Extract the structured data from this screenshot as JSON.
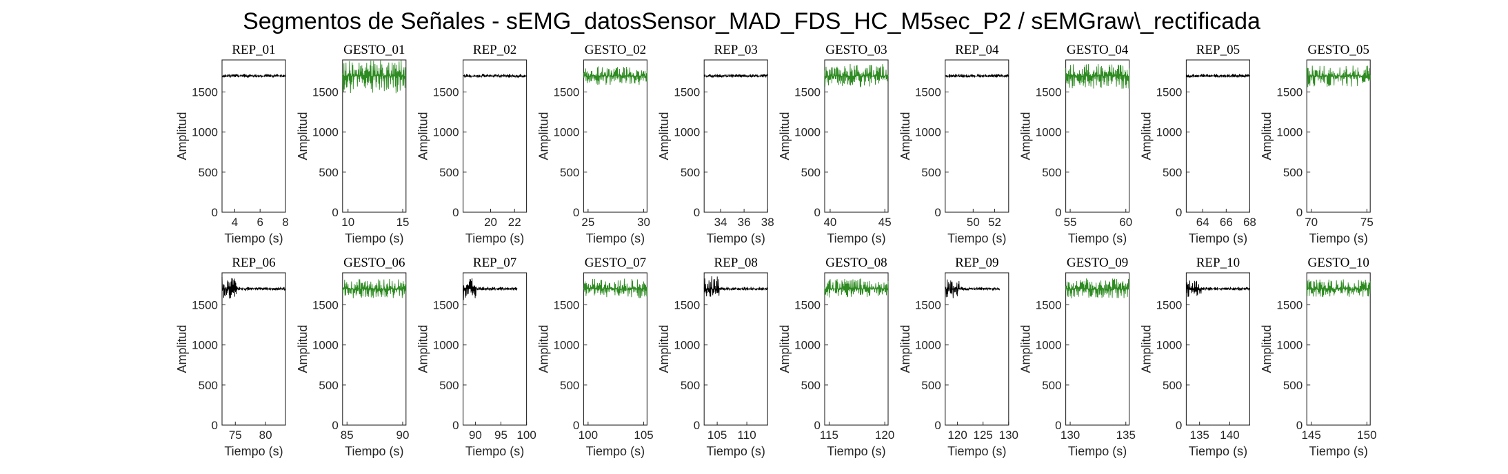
{
  "title": "Segmentos de Señales - sEMG_datosSensor_MAD_FDS_HC_M5sec_P2 / sEMGraw\\_rectificada",
  "colors": {
    "rep": "#000000",
    "gesto": "#2e8b22",
    "axis": "#262626"
  },
  "chart_data": [
    {
      "type": "line",
      "title": "REP_01",
      "kind": "rep",
      "xlabel": "Tiempo (s)",
      "ylabel": "Amplitud",
      "xlim": [
        3,
        8
      ],
      "ylim": [
        0,
        1900
      ],
      "xticks": [
        4,
        6,
        8
      ],
      "yticks": [
        0,
        500,
        1000,
        1500
      ],
      "signal_range": [
        3,
        8
      ],
      "baseline": 1700,
      "noise": [
        1680,
        1725
      ]
    },
    {
      "type": "line",
      "title": "GESTO_01",
      "kind": "gesto",
      "xlabel": "Tiempo (s)",
      "ylabel": "Amplitud",
      "xlim": [
        9.5,
        15.3
      ],
      "ylim": [
        0,
        1900
      ],
      "xticks": [
        10,
        15
      ],
      "yticks": [
        0,
        500,
        1000,
        1500
      ],
      "signal_range": [
        9.5,
        15.3
      ],
      "baseline": 1700,
      "noise": [
        1480,
        1900
      ]
    },
    {
      "type": "line",
      "title": "REP_02",
      "kind": "rep",
      "xlabel": "Tiempo (s)",
      "ylabel": "Amplitud",
      "xlim": [
        17.7,
        23
      ],
      "ylim": [
        0,
        1900
      ],
      "xticks": [
        20,
        22
      ],
      "yticks": [
        0,
        500,
        1000,
        1500
      ],
      "signal_range": [
        17.7,
        23
      ],
      "baseline": 1700,
      "noise": [
        1680,
        1725
      ]
    },
    {
      "type": "line",
      "title": "GESTO_02",
      "kind": "gesto",
      "xlabel": "Tiempo (s)",
      "ylabel": "Amplitud",
      "xlim": [
        24.6,
        30.3
      ],
      "ylim": [
        0,
        1900
      ],
      "xticks": [
        25,
        30
      ],
      "yticks": [
        0,
        500,
        1000,
        1500
      ],
      "signal_range": [
        24.6,
        30.3
      ],
      "baseline": 1700,
      "noise": [
        1580,
        1820
      ]
    },
    {
      "type": "line",
      "title": "REP_03",
      "kind": "rep",
      "xlabel": "Tiempo (s)",
      "ylabel": "Amplitud",
      "xlim": [
        32.6,
        38
      ],
      "ylim": [
        0,
        1900
      ],
      "xticks": [
        34,
        36,
        38
      ],
      "yticks": [
        0,
        500,
        1000,
        1500
      ],
      "signal_range": [
        32.6,
        38
      ],
      "baseline": 1700,
      "noise": [
        1680,
        1725
      ]
    },
    {
      "type": "line",
      "title": "GESTO_03",
      "kind": "gesto",
      "xlabel": "Tiempo (s)",
      "ylabel": "Amplitud",
      "xlim": [
        39.5,
        45.3
      ],
      "ylim": [
        0,
        1900
      ],
      "xticks": [
        40,
        45
      ],
      "yticks": [
        0,
        500,
        1000,
        1500
      ],
      "signal_range": [
        39.5,
        45.3
      ],
      "baseline": 1700,
      "noise": [
        1560,
        1850
      ]
    },
    {
      "type": "line",
      "title": "REP_04",
      "kind": "rep",
      "xlabel": "Tiempo (s)",
      "ylabel": "Amplitud",
      "xlim": [
        47.4,
        53.3
      ],
      "ylim": [
        0,
        1900
      ],
      "xticks": [
        50,
        52
      ],
      "yticks": [
        0,
        500,
        1000,
        1500
      ],
      "signal_range": [
        47.4,
        53.3
      ],
      "baseline": 1700,
      "noise": [
        1680,
        1725
      ]
    },
    {
      "type": "line",
      "title": "GESTO_04",
      "kind": "gesto",
      "xlabel": "Tiempo (s)",
      "ylabel": "Amplitud",
      "xlim": [
        54.6,
        60.3
      ],
      "ylim": [
        0,
        1900
      ],
      "xticks": [
        55,
        60
      ],
      "yticks": [
        0,
        500,
        1000,
        1500
      ],
      "signal_range": [
        54.6,
        60.3
      ],
      "baseline": 1700,
      "noise": [
        1540,
        1850
      ]
    },
    {
      "type": "line",
      "title": "REP_05",
      "kind": "rep",
      "xlabel": "Tiempo (s)",
      "ylabel": "Amplitud",
      "xlim": [
        62.6,
        68
      ],
      "ylim": [
        0,
        1900
      ],
      "xticks": [
        64,
        66,
        68
      ],
      "yticks": [
        0,
        500,
        1000,
        1500
      ],
      "signal_range": [
        62.6,
        68
      ],
      "baseline": 1700,
      "noise": [
        1680,
        1725
      ]
    },
    {
      "type": "line",
      "title": "GESTO_05",
      "kind": "gesto",
      "xlabel": "Tiempo (s)",
      "ylabel": "Amplitud",
      "xlim": [
        69.6,
        75.3
      ],
      "ylim": [
        0,
        1900
      ],
      "xticks": [
        70,
        75
      ],
      "yticks": [
        0,
        500,
        1000,
        1500
      ],
      "signal_range": [
        69.6,
        75.3
      ],
      "baseline": 1700,
      "noise": [
        1560,
        1830
      ]
    },
    {
      "type": "line",
      "title": "REP_06",
      "kind": "rep",
      "xlabel": "Tiempo (s)",
      "ylabel": "Amplitud",
      "xlim": [
        72.8,
        83.3
      ],
      "ylim": [
        0,
        1900
      ],
      "xticks": [
        75,
        80
      ],
      "yticks": [
        0,
        500,
        1000,
        1500
      ],
      "signal_range": [
        72.8,
        83.3
      ],
      "baseline": 1700,
      "noise": [
        1680,
        1725
      ],
      "burst": [
        72.8,
        75.2,
        1580,
        1850
      ]
    },
    {
      "type": "line",
      "title": "GESTO_06",
      "kind": "gesto",
      "xlabel": "Tiempo (s)",
      "ylabel": "Amplitud",
      "xlim": [
        84.6,
        90.3
      ],
      "ylim": [
        0,
        1900
      ],
      "xticks": [
        85,
        90
      ],
      "yticks": [
        0,
        500,
        1000,
        1500
      ],
      "signal_range": [
        84.6,
        90.3
      ],
      "baseline": 1700,
      "noise": [
        1580,
        1830
      ]
    },
    {
      "type": "line",
      "title": "REP_07",
      "kind": "rep",
      "xlabel": "Tiempo (s)",
      "ylabel": "Amplitud",
      "xlim": [
        87.6,
        100
      ],
      "ylim": [
        0,
        1900
      ],
      "xticks": [
        90,
        95,
        100
      ],
      "yticks": [
        0,
        500,
        1000,
        1500
      ],
      "signal_range": [
        87.6,
        98.2
      ],
      "baseline": 1700,
      "noise": [
        1680,
        1725
      ],
      "burst": [
        87.6,
        90.2,
        1550,
        1860
      ]
    },
    {
      "type": "line",
      "title": "GESTO_07",
      "kind": "gesto",
      "xlabel": "Tiempo (s)",
      "ylabel": "Amplitud",
      "xlim": [
        99.6,
        105.3
      ],
      "ylim": [
        0,
        1900
      ],
      "xticks": [
        100,
        105
      ],
      "yticks": [
        0,
        500,
        1000,
        1500
      ],
      "signal_range": [
        99.6,
        105.3
      ],
      "baseline": 1700,
      "noise": [
        1580,
        1830
      ]
    },
    {
      "type": "line",
      "title": "REP_08",
      "kind": "rep",
      "xlabel": "Tiempo (s)",
      "ylabel": "Amplitud",
      "xlim": [
        102.8,
        113.5
      ],
      "ylim": [
        0,
        1900
      ],
      "xticks": [
        105,
        110
      ],
      "yticks": [
        0,
        500,
        1000,
        1500
      ],
      "signal_range": [
        102.8,
        113.5
      ],
      "baseline": 1700,
      "noise": [
        1680,
        1725
      ],
      "burst": [
        102.8,
        105.4,
        1580,
        1860
      ]
    },
    {
      "type": "line",
      "title": "GESTO_08",
      "kind": "gesto",
      "xlabel": "Tiempo (s)",
      "ylabel": "Amplitud",
      "xlim": [
        114.6,
        120.3
      ],
      "ylim": [
        0,
        1900
      ],
      "xticks": [
        115,
        120
      ],
      "yticks": [
        0,
        500,
        1000,
        1500
      ],
      "signal_range": [
        114.6,
        120.3
      ],
      "baseline": 1700,
      "noise": [
        1590,
        1830
      ]
    },
    {
      "type": "line",
      "title": "REP_09",
      "kind": "rep",
      "xlabel": "Tiempo (s)",
      "ylabel": "Amplitud",
      "xlim": [
        117.6,
        130
      ],
      "ylim": [
        0,
        1900
      ],
      "xticks": [
        120,
        125,
        130
      ],
      "yticks": [
        0,
        500,
        1000,
        1500
      ],
      "signal_range": [
        117.6,
        128.3
      ],
      "baseline": 1700,
      "noise": [
        1680,
        1725
      ],
      "burst": [
        117.6,
        120.3,
        1580,
        1860
      ]
    },
    {
      "type": "line",
      "title": "GESTO_09",
      "kind": "gesto",
      "xlabel": "Tiempo (s)",
      "ylabel": "Amplitud",
      "xlim": [
        129.6,
        135.3
      ],
      "ylim": [
        0,
        1900
      ],
      "xticks": [
        130,
        135
      ],
      "yticks": [
        0,
        500,
        1000,
        1500
      ],
      "signal_range": [
        129.6,
        135.3
      ],
      "baseline": 1700,
      "noise": [
        1580,
        1830
      ]
    },
    {
      "type": "line",
      "title": "REP_10",
      "kind": "rep",
      "xlabel": "Tiempo (s)",
      "ylabel": "Amplitud",
      "xlim": [
        132.8,
        143.3
      ],
      "ylim": [
        0,
        1900
      ],
      "xticks": [
        135,
        140
      ],
      "yticks": [
        0,
        500,
        1000,
        1500
      ],
      "signal_range": [
        132.8,
        143.3
      ],
      "baseline": 1700,
      "noise": [
        1680,
        1725
      ],
      "burst": [
        132.8,
        135.4,
        1590,
        1850
      ]
    },
    {
      "type": "line",
      "title": "GESTO_10",
      "kind": "gesto",
      "xlabel": "Tiempo (s)",
      "ylabel": "Amplitud",
      "xlim": [
        144.6,
        150.3
      ],
      "ylim": [
        0,
        1900
      ],
      "xticks": [
        145,
        150
      ],
      "yticks": [
        0,
        500,
        1000,
        1500
      ],
      "signal_range": [
        144.6,
        150.3
      ],
      "baseline": 1700,
      "noise": [
        1600,
        1820
      ]
    }
  ]
}
